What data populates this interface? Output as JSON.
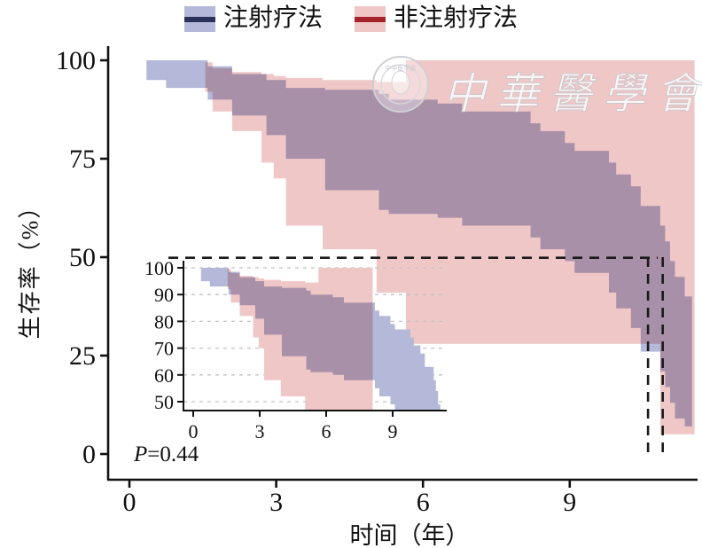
{
  "axes": {
    "y_title": "生存率（%）",
    "x_title": "时间（年）",
    "y_ticks": [
      100,
      75,
      50,
      25,
      0
    ],
    "x_ticks": [
      0,
      3,
      6,
      9
    ]
  },
  "annotation": {
    "p_italic": "P",
    "p_rest": "=0.44"
  },
  "watermark": {
    "script_text": "中華醫學會",
    "seal_text": "中华医学会"
  },
  "chart_data": {
    "type": "line",
    "subtype": "kaplan-meier-survival",
    "title": "",
    "xlabel": "时间（年）",
    "ylabel": "生存率（%）",
    "xlim": [
      0,
      11.6
    ],
    "ylim": [
      0,
      100
    ],
    "p_value": "P=0.44",
    "median_markers": {
      "y_pct": 50,
      "x_years": [
        10.6,
        10.9
      ]
    },
    "legend_position": "top-center",
    "series": [
      {
        "name": "注射疗法",
        "color": "#293059",
        "band_color": "#b4b8d9",
        "steps": [
          [
            0,
            100
          ],
          [
            0.35,
            97.5
          ],
          [
            0.75,
            96
          ],
          [
            1.6,
            94.5
          ],
          [
            2.1,
            92.5
          ],
          [
            2.8,
            90.5
          ],
          [
            3.0,
            89
          ],
          [
            5.1,
            87
          ],
          [
            5.2,
            85.5
          ],
          [
            5.3,
            84
          ],
          [
            6.3,
            82
          ],
          [
            6.8,
            79
          ],
          [
            8.2,
            76.5
          ],
          [
            8.35,
            75
          ],
          [
            8.85,
            71
          ],
          [
            8.95,
            68
          ],
          [
            9.05,
            65.5
          ],
          [
            9.75,
            62
          ],
          [
            9.9,
            58.5
          ],
          [
            10.2,
            54.5
          ],
          [
            10.42,
            46.5
          ],
          [
            10.85,
            41
          ],
          [
            10.95,
            36
          ],
          [
            11.05,
            31
          ],
          [
            11.1,
            27.5
          ],
          [
            11.15,
            22.5
          ],
          [
            11.35,
            18
          ]
        ],
        "end_t": 11.5,
        "band": [
          [
            0.35,
            100,
            95
          ],
          [
            0.75,
            100,
            93
          ],
          [
            1.6,
            98.5,
            90
          ],
          [
            2.1,
            96.5,
            86
          ],
          [
            2.8,
            95,
            81
          ],
          [
            3.2,
            93,
            75
          ],
          [
            4.0,
            92.5,
            67
          ],
          [
            5.1,
            91.5,
            62
          ],
          [
            5.3,
            90,
            61
          ],
          [
            6.3,
            89,
            60
          ],
          [
            6.8,
            87,
            58
          ],
          [
            8.2,
            84,
            55
          ],
          [
            8.4,
            82,
            52
          ],
          [
            8.9,
            79,
            49
          ],
          [
            9.1,
            77,
            46
          ],
          [
            9.8,
            74,
            41
          ],
          [
            9.95,
            71,
            37
          ],
          [
            10.25,
            68,
            32
          ],
          [
            10.45,
            63,
            26
          ],
          [
            10.85,
            58,
            21
          ],
          [
            10.95,
            54,
            17
          ],
          [
            11.05,
            49,
            13
          ],
          [
            11.15,
            45,
            9
          ],
          [
            11.35,
            40,
            7
          ]
        ],
        "band_end_t": 11.5
      },
      {
        "name": "非注射疗法",
        "color": "#a5242b",
        "band_color": "#efc7c7",
        "steps": [
          [
            0,
            100
          ],
          [
            1.55,
            97.5
          ],
          [
            1.7,
            94.5
          ],
          [
            2.7,
            90.5
          ],
          [
            2.95,
            87.5
          ],
          [
            3.2,
            84.5
          ],
          [
            3.95,
            81
          ],
          [
            5.05,
            76.5
          ],
          [
            5.65,
            71
          ],
          [
            7.55,
            53
          ],
          [
            10.85,
            26
          ]
        ],
        "end_t": 11.55,
        "band": [
          [
            1.55,
            99.5,
            92
          ],
          [
            1.7,
            98,
            87
          ],
          [
            2.1,
            97,
            82
          ],
          [
            2.7,
            96.5,
            74
          ],
          [
            2.95,
            96,
            70
          ],
          [
            3.2,
            95.5,
            58
          ],
          [
            3.95,
            95,
            52
          ],
          [
            5.05,
            94.5,
            41
          ],
          [
            5.65,
            100,
            28
          ],
          [
            10.85,
            100,
            5
          ]
        ],
        "band_end_t": 11.55
      }
    ],
    "inset": {
      "ylim": [
        50,
        100
      ],
      "y_ticks": [
        100,
        90,
        80,
        70,
        60,
        50
      ],
      "x_ticks": [
        0,
        3,
        6,
        9
      ],
      "grid": "dashed-horizontal",
      "blue_curve_end_t": 10.55,
      "red_curve_end_t": 8.6,
      "blue_band_end_t": 10.7,
      "red_band_end_t": 8.1
    }
  }
}
